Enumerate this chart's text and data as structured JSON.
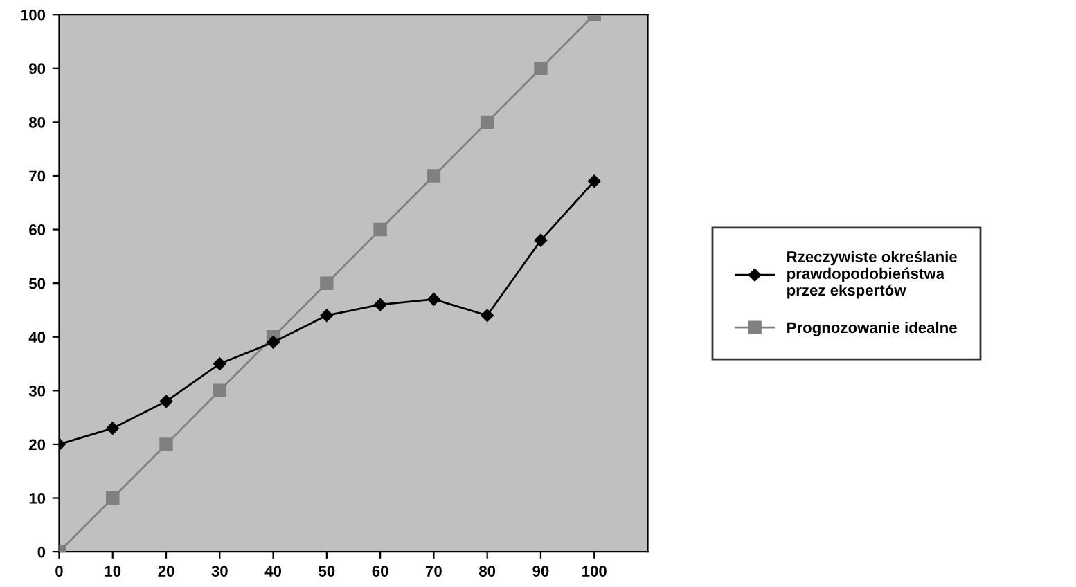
{
  "chart_data": {
    "type": "line",
    "x": [
      0,
      10,
      20,
      30,
      40,
      50,
      60,
      70,
      80,
      90,
      100
    ],
    "series": [
      {
        "name": "Rzeczywiste określanie\nprawdopodobieństwa\nprzez ekspertów",
        "color": "#000000",
        "marker": "diamond",
        "values": [
          20,
          23,
          28,
          35,
          39,
          44,
          46,
          47,
          44,
          58,
          69
        ]
      },
      {
        "name": "Prognozowanie idealne",
        "color": "#808080",
        "marker": "square",
        "values": [
          0,
          10,
          20,
          30,
          40,
          50,
          60,
          70,
          80,
          90,
          100
        ]
      }
    ],
    "xlim": [
      0,
      110
    ],
    "xticks": [
      0,
      10,
      20,
      30,
      40,
      50,
      60,
      70,
      80,
      90,
      100
    ],
    "ylim": [
      0,
      100
    ],
    "yticks": [
      0,
      10,
      20,
      30,
      40,
      50,
      60,
      70,
      80,
      90,
      100
    ],
    "grid": false,
    "legend": "right"
  }
}
